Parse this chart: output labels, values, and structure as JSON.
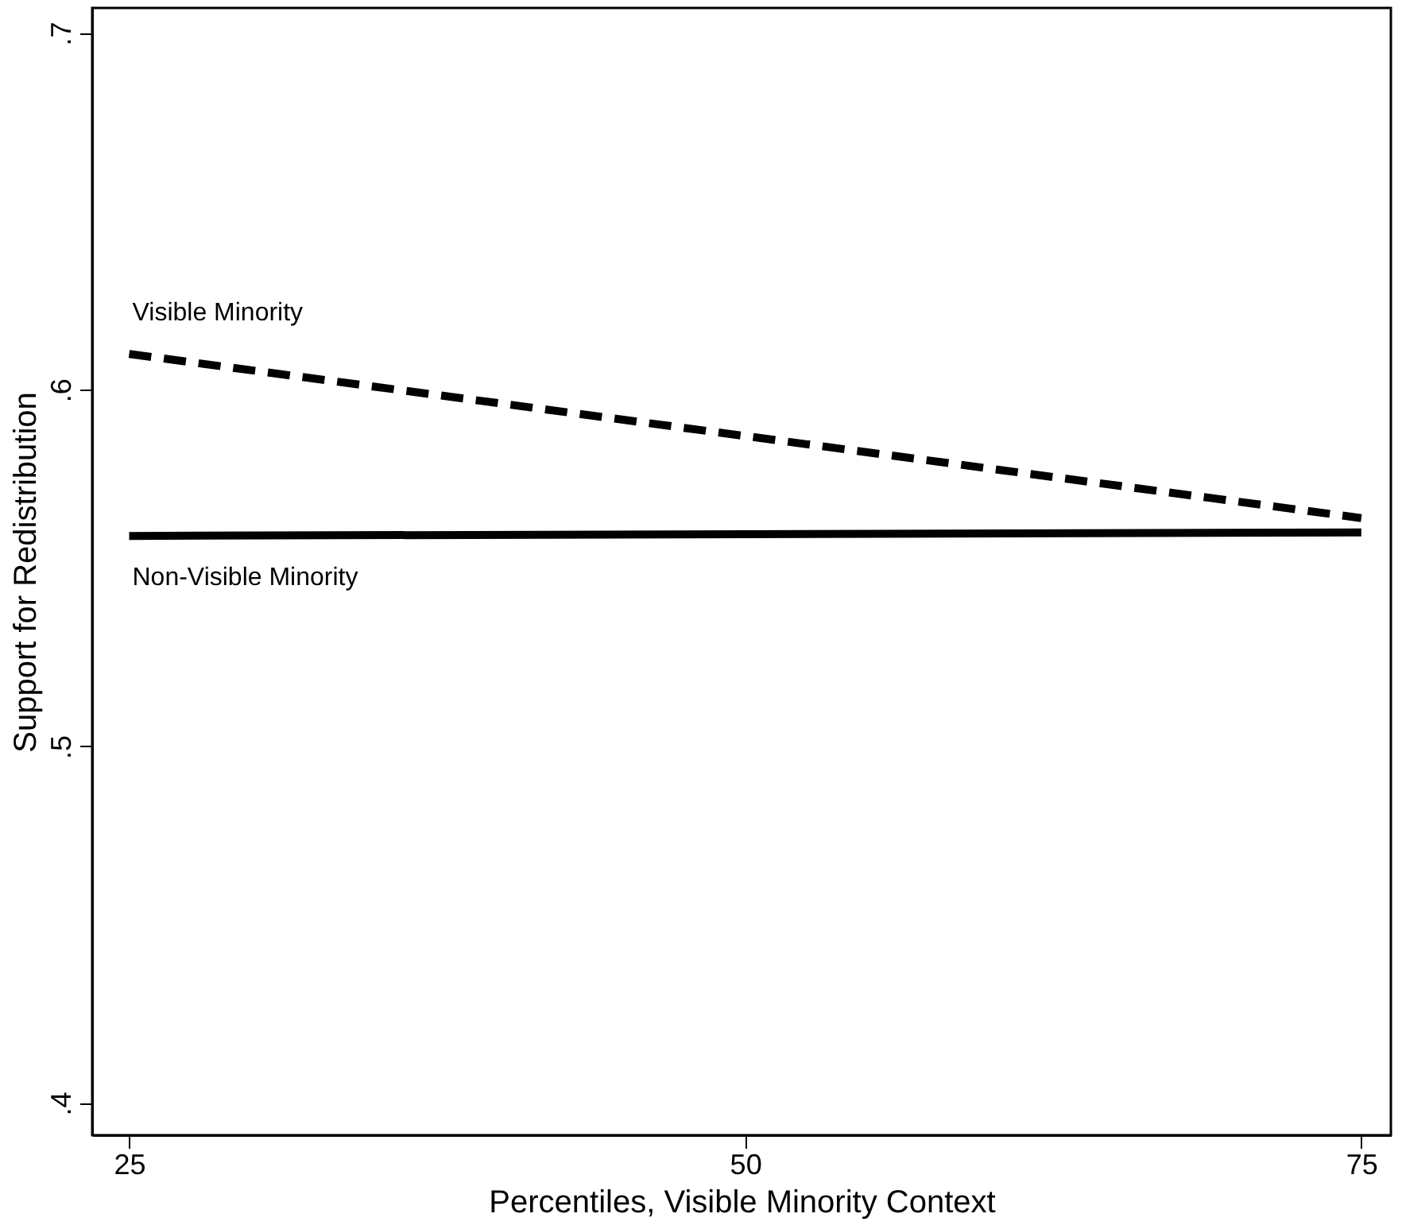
{
  "chart_data": {
    "type": "line",
    "xlabel": "Percentiles, Visible Minority Context",
    "ylabel": "Support for Redistribution",
    "x": [
      25,
      50,
      75
    ],
    "series": [
      {
        "name": "Visible Minority",
        "color": "#000000",
        "values": [
          0.61,
          0.587,
          0.564
        ],
        "line_style": "dashed"
      },
      {
        "name": "Non-Visible Minority",
        "color": "#000000",
        "values": [
          0.559,
          0.5595,
          0.56
        ],
        "line_style": "solid"
      }
    ],
    "xlim": [
      23.5,
      76.2
    ],
    "ylim": [
      0.391,
      0.707
    ],
    "xticks": [
      25,
      50,
      75
    ],
    "yticks": [
      {
        "value": 0.4,
        "label": ".4"
      },
      {
        "value": 0.5,
        "label": ".5"
      },
      {
        "value": 0.6,
        "label": ".6"
      },
      {
        "value": 0.7,
        "label": ".7"
      }
    ],
    "grid": false,
    "legend": false,
    "marker": "none"
  }
}
